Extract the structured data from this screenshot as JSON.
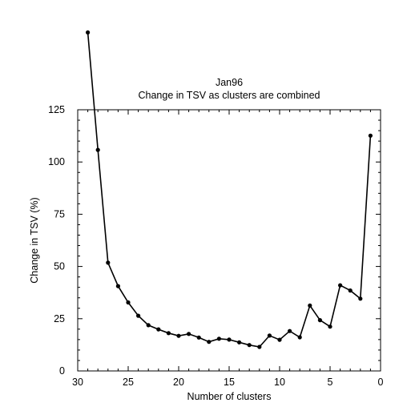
{
  "chart_data": {
    "type": "line",
    "title": "Jan96",
    "subtitle": "Change in TSV as clusters are combined",
    "xlabel": "Number of clusters",
    "ylabel": "Change in TSV (%)",
    "xlim": [
      30,
      0
    ],
    "ylim": [
      0,
      125
    ],
    "x_reversed": true,
    "x_ticks": [
      30,
      25,
      20,
      15,
      10,
      5,
      0
    ],
    "y_ticks": [
      0,
      25,
      50,
      75,
      100,
      125
    ],
    "grid": false,
    "marker": "circle",
    "line_color": "#000000",
    "x": [
      29,
      28,
      27,
      26,
      25,
      24,
      23,
      22,
      21,
      20,
      19,
      18,
      17,
      16,
      15,
      14,
      13,
      12,
      11,
      10,
      9,
      8,
      7,
      6,
      5,
      4,
      3,
      2,
      1
    ],
    "values": [
      162,
      105.8,
      51.8,
      40.6,
      32.8,
      26.4,
      21.9,
      19.9,
      18.1,
      16.8,
      17.7,
      16.0,
      13.9,
      15.4,
      15.0,
      13.7,
      12.4,
      11.5,
      16.9,
      14.9,
      19.1,
      16.1,
      31.3,
      24.3,
      21.2,
      41.0,
      38.5,
      34.6,
      112.6
    ]
  }
}
